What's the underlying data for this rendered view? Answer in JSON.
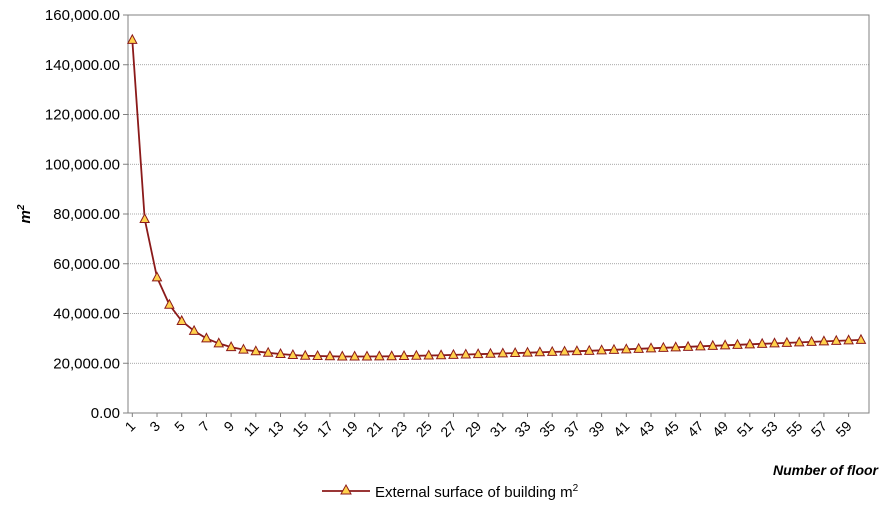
{
  "chart_data": {
    "type": "line",
    "title": "",
    "xlabel": "Number of floor",
    "ylabel": "m",
    "ylabel_superscript": "2",
    "ylim": [
      0,
      160000
    ],
    "y_ticks": [
      0,
      20000,
      40000,
      60000,
      80000,
      100000,
      120000,
      140000,
      160000
    ],
    "y_tick_labels": [
      "0.00",
      "20,000.00",
      "40,000.00",
      "60,000.00",
      "80,000.00",
      "100,000.00",
      "120,000.00",
      "140,000.00",
      "160,000.00"
    ],
    "x_tick_labels": [
      "1",
      "3",
      "5",
      "7",
      "9",
      "11",
      "13",
      "15",
      "17",
      "19",
      "21",
      "23",
      "25",
      "27",
      "29",
      "31",
      "33",
      "35",
      "37",
      "39",
      "41",
      "43",
      "45",
      "47",
      "49",
      "51",
      "53",
      "55",
      "57",
      "59"
    ],
    "grid": true,
    "legend_position": "bottom",
    "series": [
      {
        "name": "External surface of building m",
        "name_superscript": "2",
        "color": "#8b1a1a",
        "marker_fill": "#ffd24d",
        "marker": "triangle",
        "x": [
          1,
          2,
          3,
          4,
          5,
          6,
          7,
          8,
          9,
          10,
          11,
          12,
          13,
          14,
          15,
          16,
          17,
          18,
          19,
          20,
          21,
          22,
          23,
          24,
          25,
          26,
          27,
          28,
          29,
          30,
          31,
          32,
          33,
          34,
          35,
          36,
          37,
          38,
          39,
          40,
          41,
          42,
          43,
          44,
          45,
          46,
          47,
          48,
          49,
          50,
          51,
          52,
          53,
          54,
          55,
          56,
          57,
          58,
          59,
          60
        ],
        "values": [
          150000,
          78000,
          54500,
          43500,
          37000,
          33000,
          30000,
          28000,
          26500,
          25500,
          24800,
          24200,
          23700,
          23300,
          23000,
          22900,
          22800,
          22700,
          22700,
          22700,
          22750,
          22800,
          22900,
          23000,
          23100,
          23200,
          23350,
          23500,
          23650,
          23800,
          23950,
          24100,
          24250,
          24400,
          24550,
          24700,
          24850,
          25000,
          25200,
          25400,
          25600,
          25800,
          26000,
          26200,
          26400,
          26600,
          26800,
          27000,
          27200,
          27400,
          27600,
          27800,
          28000,
          28200,
          28400,
          28600,
          28800,
          29000,
          29200,
          29400
        ]
      }
    ]
  }
}
